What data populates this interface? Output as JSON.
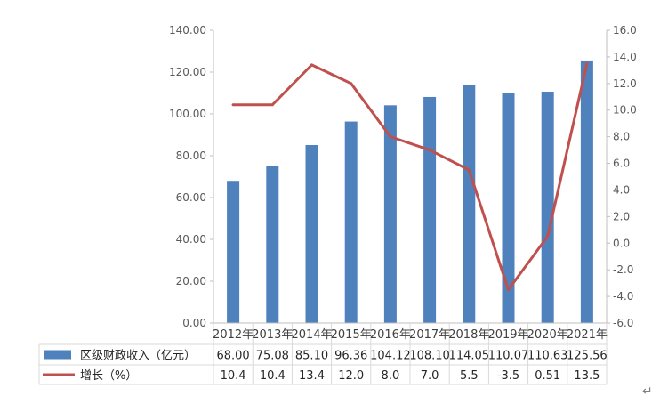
{
  "chart_data": {
    "type": "bar+line",
    "categories": [
      "2012年",
      "2013年",
      "2014年",
      "2015年",
      "2016年",
      "2017年",
      "2018年",
      "2019年",
      "2020年",
      "2021年"
    ],
    "series": [
      {
        "name": "区级财政收入（亿元）",
        "type": "bar",
        "axis": "left",
        "color": "#4F81BD",
        "values": [
          68.0,
          75.08,
          85.1,
          96.36,
          104.12,
          108.1,
          114.05,
          110.07,
          110.63,
          125.56
        ],
        "labels": [
          "68.00",
          "75.08",
          "85.10",
          "96.36",
          "104.12",
          "108.10",
          "114.05",
          "110.07",
          "110.63",
          "125.56"
        ]
      },
      {
        "name": "增长（%）",
        "type": "line",
        "axis": "right",
        "color": "#C0504D",
        "values": [
          10.4,
          10.4,
          13.4,
          12.0,
          8.0,
          7.0,
          5.5,
          -3.5,
          0.51,
          13.5
        ],
        "labels": [
          "10.4",
          "10.4",
          "13.4",
          "12.0",
          "8.0",
          "7.0",
          "5.5",
          "-3.5",
          "0.51",
          "13.5"
        ]
      }
    ],
    "y_left": {
      "min": 0,
      "max": 140,
      "step": 20,
      "tick_labels": [
        "0.00",
        "20.00",
        "40.00",
        "60.00",
        "80.00",
        "100.00",
        "120.00",
        "140.00"
      ]
    },
    "y_right": {
      "min": -6,
      "max": 16,
      "step": 2,
      "tick_labels": [
        "-6.0",
        "-4.0",
        "-2.0",
        "0.0",
        "2.0",
        "4.0",
        "6.0",
        "8.0",
        "10.0",
        "12.0",
        "14.0",
        "16.0"
      ]
    },
    "grid": false,
    "legend": "data-table"
  },
  "return_mark": "↵"
}
